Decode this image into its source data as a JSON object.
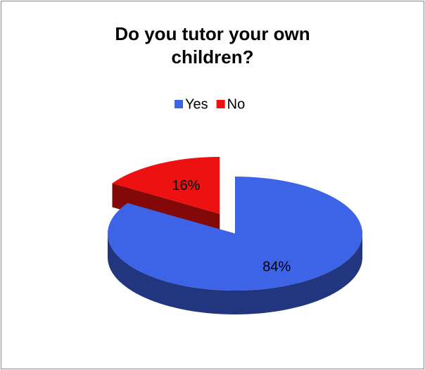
{
  "chart_data": {
    "type": "pie",
    "title": "Do you tutor your own children?",
    "categories": [
      "Yes",
      "No"
    ],
    "values": [
      84,
      16
    ],
    "value_labels": [
      "84%",
      "16%"
    ],
    "colors": [
      "#3d63e6",
      "#ee1111"
    ],
    "legend": "top",
    "exploded": [
      false,
      true
    ]
  }
}
